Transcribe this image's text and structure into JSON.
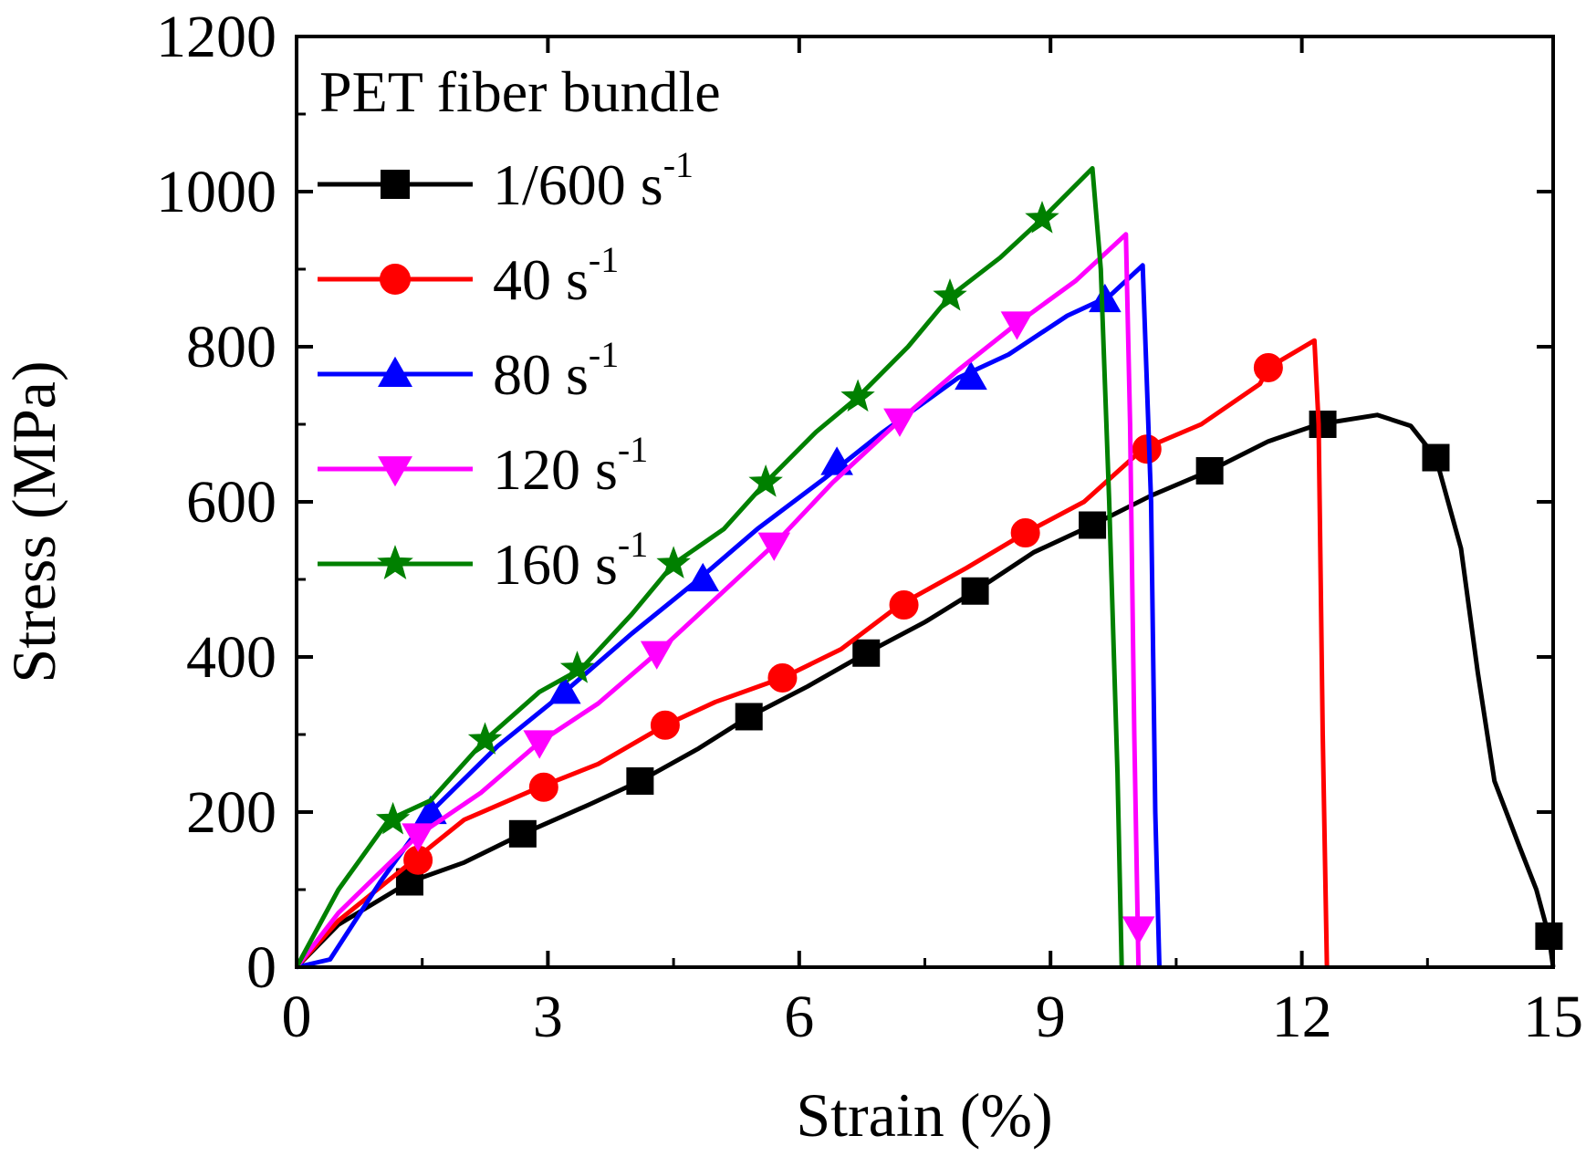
{
  "chart_data": {
    "type": "line",
    "title": "",
    "annotation": "PET fiber bundle",
    "xlabel": "Strain (%)",
    "ylabel": "Stress (MPa)",
    "xlim": [
      0,
      15
    ],
    "ylim": [
      0,
      1200
    ],
    "xticks": [
      0,
      3,
      6,
      9,
      12,
      15
    ],
    "yticks": [
      0,
      200,
      400,
      600,
      800,
      1000,
      1200
    ],
    "xtick_labels": [
      "0",
      "3",
      "6",
      "9",
      "12",
      "15"
    ],
    "ytick_labels": [
      "0",
      "200",
      "400",
      "600",
      "800",
      "1000",
      "1200"
    ],
    "grid": false,
    "legend_position": "top-left",
    "series": [
      {
        "name": "1/600 s",
        "name_superscript": "-1",
        "color": "#000000",
        "marker": "square",
        "points": [
          [
            0,
            0
          ],
          [
            0.5,
            55
          ],
          [
            1.35,
            110
          ],
          [
            2,
            135
          ],
          [
            2.7,
            172
          ],
          [
            3.5,
            210
          ],
          [
            4.1,
            240
          ],
          [
            4.8,
            282
          ],
          [
            5.4,
            323
          ],
          [
            6.1,
            362
          ],
          [
            6.8,
            405
          ],
          [
            7.5,
            445
          ],
          [
            8.1,
            485
          ],
          [
            8.8,
            535
          ],
          [
            9.5,
            570
          ],
          [
            10.2,
            608
          ],
          [
            10.9,
            640
          ],
          [
            11.6,
            678
          ],
          [
            12.2,
            700
          ],
          [
            12.9,
            712
          ],
          [
            13.3,
            698
          ],
          [
            13.6,
            657
          ],
          [
            13.9,
            540
          ],
          [
            14.1,
            380
          ],
          [
            14.3,
            240
          ],
          [
            14.6,
            155
          ],
          [
            14.8,
            100
          ],
          [
            14.95,
            40
          ],
          [
            15,
            0
          ]
        ],
        "markers": [
          [
            1.35,
            110
          ],
          [
            2.7,
            172
          ],
          [
            4.1,
            240
          ],
          [
            5.4,
            323
          ],
          [
            6.8,
            405
          ],
          [
            8.1,
            485
          ],
          [
            9.5,
            570
          ],
          [
            10.9,
            640
          ],
          [
            12.25,
            700
          ],
          [
            13.6,
            657
          ],
          [
            14.95,
            40
          ]
        ]
      },
      {
        "name": "40 s",
        "name_superscript": "-1",
        "color": "#ff0000",
        "marker": "circle",
        "points": [
          [
            0,
            0
          ],
          [
            0.5,
            60
          ],
          [
            1.4,
            138
          ],
          [
            2,
            190
          ],
          [
            2.9,
            232
          ],
          [
            3.6,
            262
          ],
          [
            4.4,
            312
          ],
          [
            5,
            342
          ],
          [
            5.8,
            373
          ],
          [
            6.5,
            410
          ],
          [
            7.2,
            467
          ],
          [
            8,
            515
          ],
          [
            8.7,
            560
          ],
          [
            9.4,
            600
          ],
          [
            10.1,
            668
          ],
          [
            10.8,
            700
          ],
          [
            11.5,
            752
          ],
          [
            11.6,
            773
          ],
          [
            12.15,
            808
          ],
          [
            12.2,
            700
          ],
          [
            12.25,
            300
          ],
          [
            12.3,
            0
          ]
        ],
        "markers": [
          [
            1.45,
            138
          ],
          [
            2.95,
            232
          ],
          [
            4.4,
            312
          ],
          [
            5.8,
            373
          ],
          [
            7.25,
            467
          ],
          [
            8.7,
            560
          ],
          [
            10.15,
            668
          ],
          [
            11.6,
            773
          ]
        ]
      },
      {
        "name": "80 s",
        "name_superscript": "-1",
        "color": "#0000ff",
        "marker": "triangle-up",
        "points": [
          [
            0,
            0
          ],
          [
            0.4,
            10
          ],
          [
            1,
            110
          ],
          [
            1.6,
            200
          ],
          [
            2.4,
            285
          ],
          [
            3.2,
            355
          ],
          [
            4,
            430
          ],
          [
            4.8,
            500
          ],
          [
            5.5,
            565
          ],
          [
            6.3,
            630
          ],
          [
            7,
            690
          ],
          [
            7.9,
            760
          ],
          [
            8.5,
            790
          ],
          [
            9.2,
            840
          ],
          [
            9.7,
            865
          ],
          [
            10.1,
            905
          ],
          [
            10.2,
            600
          ],
          [
            10.25,
            200
          ],
          [
            10.3,
            0
          ]
        ],
        "markers": [
          [
            1.6,
            200
          ],
          [
            3.2,
            355
          ],
          [
            4.85,
            500
          ],
          [
            6.45,
            650
          ],
          [
            8.05,
            760
          ],
          [
            9.65,
            860
          ]
        ]
      },
      {
        "name": "120 s",
        "name_superscript": "-1",
        "color": "#ff00ff",
        "marker": "triangle-down",
        "points": [
          [
            0,
            0
          ],
          [
            0.5,
            70
          ],
          [
            1.45,
            170
          ],
          [
            2.2,
            225
          ],
          [
            2.9,
            290
          ],
          [
            3.6,
            340
          ],
          [
            4.3,
            405
          ],
          [
            5,
            475
          ],
          [
            5.7,
            545
          ],
          [
            6.4,
            625
          ],
          [
            7.2,
            705
          ],
          [
            7.9,
            770
          ],
          [
            8.6,
            830
          ],
          [
            9.3,
            885
          ],
          [
            9.9,
            945
          ],
          [
            9.95,
            700
          ],
          [
            10,
            300
          ],
          [
            10.05,
            0
          ]
        ],
        "markers": [
          [
            1.45,
            170
          ],
          [
            2.9,
            290
          ],
          [
            4.3,
            405
          ],
          [
            5.7,
            545
          ],
          [
            7.2,
            705
          ],
          [
            8.6,
            830
          ],
          [
            10.05,
            50
          ]
        ]
      },
      {
        "name": "160 s",
        "name_superscript": "-1",
        "color": "#008000",
        "marker": "star",
        "points": [
          [
            0,
            0
          ],
          [
            0.5,
            100
          ],
          [
            1.1,
            190
          ],
          [
            1.6,
            215
          ],
          [
            2.25,
            293
          ],
          [
            2.9,
            355
          ],
          [
            3.4,
            385
          ],
          [
            4,
            455
          ],
          [
            4.5,
            520
          ],
          [
            5.1,
            565
          ],
          [
            5.6,
            625
          ],
          [
            6.2,
            690
          ],
          [
            6.7,
            735
          ],
          [
            7.3,
            800
          ],
          [
            7.8,
            865
          ],
          [
            8.4,
            915
          ],
          [
            8.9,
            965
          ],
          [
            9.5,
            1030
          ],
          [
            9.6,
            900
          ],
          [
            9.7,
            600
          ],
          [
            9.8,
            250
          ],
          [
            9.85,
            0
          ]
        ],
        "markers": [
          [
            1.15,
            190
          ],
          [
            2.25,
            293
          ],
          [
            3.35,
            385
          ],
          [
            4.5,
            520
          ],
          [
            5.6,
            625
          ],
          [
            6.7,
            735
          ],
          [
            7.8,
            865
          ],
          [
            8.9,
            965
          ]
        ]
      }
    ]
  }
}
